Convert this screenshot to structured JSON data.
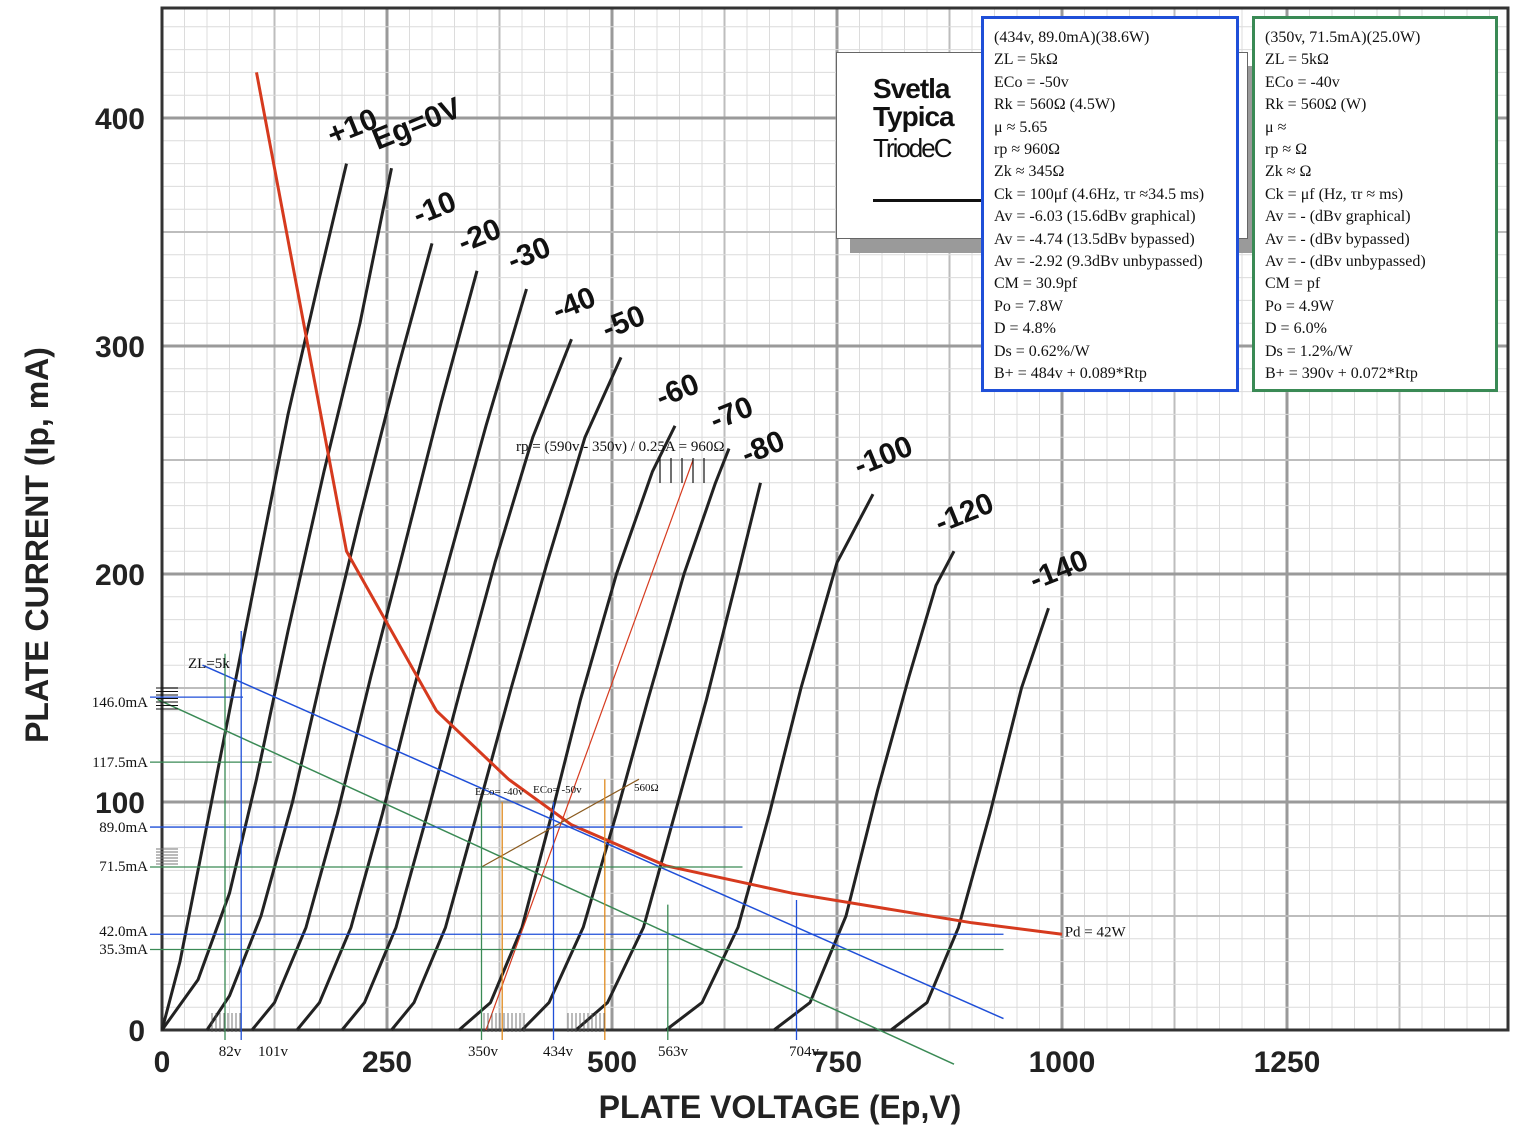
{
  "chart_data": {
    "type": "line",
    "xlabel": "PLATE VOLTAGE (Ep,V)",
    "ylabel": "PLATE CURRENT (Ip, mA)",
    "xlim": [
      0,
      1500
    ],
    "ylim": [
      0,
      450
    ],
    "x_ticks": [
      0,
      250,
      500,
      750,
      1000,
      1250
    ],
    "y_ticks": [
      0,
      100,
      200,
      300,
      400
    ],
    "grid": true,
    "header": {
      "brand": "Svetla",
      "line2": "Typica",
      "line3": "TriodeC"
    },
    "series": [
      {
        "name": "+10",
        "points": [
          [
            0,
            0
          ],
          [
            20,
            30
          ],
          [
            45,
            80
          ],
          [
            75,
            140
          ],
          [
            105,
            200
          ],
          [
            140,
            270
          ],
          [
            175,
            330
          ],
          [
            205,
            380
          ]
        ]
      },
      {
        "name": "Eg=0V",
        "points": [
          [
            0,
            0
          ],
          [
            40,
            22
          ],
          [
            75,
            60
          ],
          [
            105,
            110
          ],
          [
            140,
            175
          ],
          [
            180,
            245
          ],
          [
            220,
            310
          ],
          [
            255,
            378
          ]
        ]
      },
      {
        "name": "-10",
        "points": [
          [
            50,
            0
          ],
          [
            75,
            15
          ],
          [
            110,
            50
          ],
          [
            145,
            100
          ],
          [
            180,
            160
          ],
          [
            220,
            225
          ],
          [
            262,
            290
          ],
          [
            300,
            345
          ]
        ]
      },
      {
        "name": "-20",
        "points": [
          [
            100,
            0
          ],
          [
            125,
            12
          ],
          [
            160,
            45
          ],
          [
            195,
            95
          ],
          [
            232,
            155
          ],
          [
            268,
            210
          ],
          [
            310,
            275
          ],
          [
            350,
            333
          ]
        ]
      },
      {
        "name": "-30",
        "points": [
          [
            150,
            0
          ],
          [
            175,
            12
          ],
          [
            210,
            45
          ],
          [
            245,
            95
          ],
          [
            280,
            150
          ],
          [
            318,
            205
          ],
          [
            360,
            265
          ],
          [
            405,
            325
          ]
        ]
      },
      {
        "name": "-40",
        "points": [
          [
            200,
            0
          ],
          [
            225,
            12
          ],
          [
            260,
            45
          ],
          [
            295,
            95
          ],
          [
            332,
            150
          ],
          [
            370,
            205
          ],
          [
            412,
            260
          ],
          [
            455,
            303
          ]
        ]
      },
      {
        "name": "-50",
        "points": [
          [
            255,
            0
          ],
          [
            280,
            12
          ],
          [
            315,
            45
          ],
          [
            350,
            95
          ],
          [
            388,
            150
          ],
          [
            428,
            205
          ],
          [
            470,
            260
          ],
          [
            510,
            295
          ]
        ]
      },
      {
        "name": "-60",
        "points": [
          [
            330,
            0
          ],
          [
            365,
            12
          ],
          [
            400,
            45
          ],
          [
            430,
            90
          ],
          [
            465,
            145
          ],
          [
            505,
            200
          ],
          [
            545,
            245
          ],
          [
            570,
            265
          ]
        ]
      },
      {
        "name": "-70",
        "points": [
          [
            400,
            0
          ],
          [
            430,
            12
          ],
          [
            468,
            45
          ],
          [
            505,
            95
          ],
          [
            540,
            145
          ],
          [
            580,
            200
          ],
          [
            615,
            240
          ],
          [
            630,
            255
          ]
        ]
      },
      {
        "name": "-80",
        "points": [
          [
            460,
            0
          ],
          [
            495,
            12
          ],
          [
            535,
            45
          ],
          [
            570,
            95
          ],
          [
            605,
            145
          ],
          [
            640,
            200
          ],
          [
            665,
            240
          ]
        ]
      },
      {
        "name": "-100",
        "points": [
          [
            560,
            0
          ],
          [
            600,
            12
          ],
          [
            640,
            45
          ],
          [
            675,
            95
          ],
          [
            710,
            150
          ],
          [
            750,
            205
          ],
          [
            790,
            235
          ]
        ]
      },
      {
        "name": "-120",
        "points": [
          [
            680,
            0
          ],
          [
            720,
            12
          ],
          [
            760,
            50
          ],
          [
            795,
            105
          ],
          [
            830,
            155
          ],
          [
            860,
            195
          ],
          [
            880,
            210
          ]
        ]
      },
      {
        "name": "-140",
        "points": [
          [
            810,
            0
          ],
          [
            850,
            12
          ],
          [
            885,
            45
          ],
          [
            920,
            95
          ],
          [
            955,
            150
          ],
          [
            985,
            185
          ]
        ]
      }
    ],
    "dissipation_curve": {
      "label": "Pd = 42W",
      "points": [
        [
          105,
          420
        ],
        [
          205,
          210
        ],
        [
          305,
          140
        ],
        [
          385,
          110
        ],
        [
          455,
          90
        ],
        [
          560,
          72
        ],
        [
          700,
          60
        ],
        [
          900,
          47
        ],
        [
          1000,
          42
        ]
      ]
    },
    "load_lines": [
      {
        "label": "ZL=5k",
        "color": "#1f4fd8",
        "points": [
          [
            45,
            160
          ],
          [
            935,
            5
          ]
        ]
      },
      {
        "color": "#3a8a55",
        "points": [
          [
            -5,
            145
          ],
          [
            880,
            -15
          ]
        ]
      }
    ],
    "rp_line": {
      "color": "#d63a1e",
      "points": [
        [
          360,
          0
        ],
        [
          590,
          250
        ]
      ]
    },
    "bias_line": {
      "label": "560Ω",
      "color": "#8a5a1e",
      "points": [
        [
          355,
          71.5
        ],
        [
          530,
          110
        ]
      ]
    },
    "blue_color": "#1f4fd8",
    "green_color": "#3a8a55",
    "orange_color": "#e08a1e",
    "red_color": "#d63a1e",
    "annotations": {
      "zl": "ZL=5k",
      "i146": "146.0mA",
      "i117": "117.5mA",
      "i89": "89.0mA",
      "i71": "71.5mA",
      "i42": "42.0mA",
      "i35": "35.3mA",
      "v82": "82v",
      "v101": "101v",
      "v350": "350v",
      "v434": "434v",
      "v563": "563v",
      "v704": "704v",
      "eco40": "ECo= -40v",
      "eco50": "ECo= -50v",
      "r560": "560Ω",
      "rp": "rp = (590v - 350v) / 0.25A = 960Ω",
      "pd": "Pd = 42W"
    }
  },
  "box_a": [
    "(434v, 89.0mA)(38.6W)",
    "ZL = 5kΩ",
    "ECo = -50v",
    "Rk = 560Ω (4.5W)",
    "μ ≈ 5.65",
    "rp ≈ 960Ω",
    "Zk ≈ 345Ω",
    "Ck = 100μf (4.6Hz, τr ≈34.5 ms)",
    "Av = -6.03 (15.6dBv graphical)",
    "Av = -4.74 (13.5dBv bypassed)",
    "Av = -2.92 (9.3dBv unbypassed)",
    "CM = 30.9pf",
    "Po = 7.8W",
    "D = 4.8%",
    "Ds = 0.62%/W",
    "B+ = 484v + 0.089*Rtp"
  ],
  "box_b": [
    "(350v, 71.5mA)(25.0W)",
    "ZL = 5kΩ",
    "ECo = -40v",
    "Rk = 560Ω (W)",
    "μ ≈",
    "rp ≈ Ω",
    "Zk ≈ Ω",
    "Ck = μf (Hz, τr ≈ ms)",
    "Av = - (dBv graphical)",
    "Av = - (dBv bypassed)",
    "Av = - (dBv unbypassed)",
    "CM = pf",
    "Po = 4.9W",
    "D = 6.0%",
    "Ds = 1.2%/W",
    "B+ = 390v + 0.072*Rtp"
  ]
}
